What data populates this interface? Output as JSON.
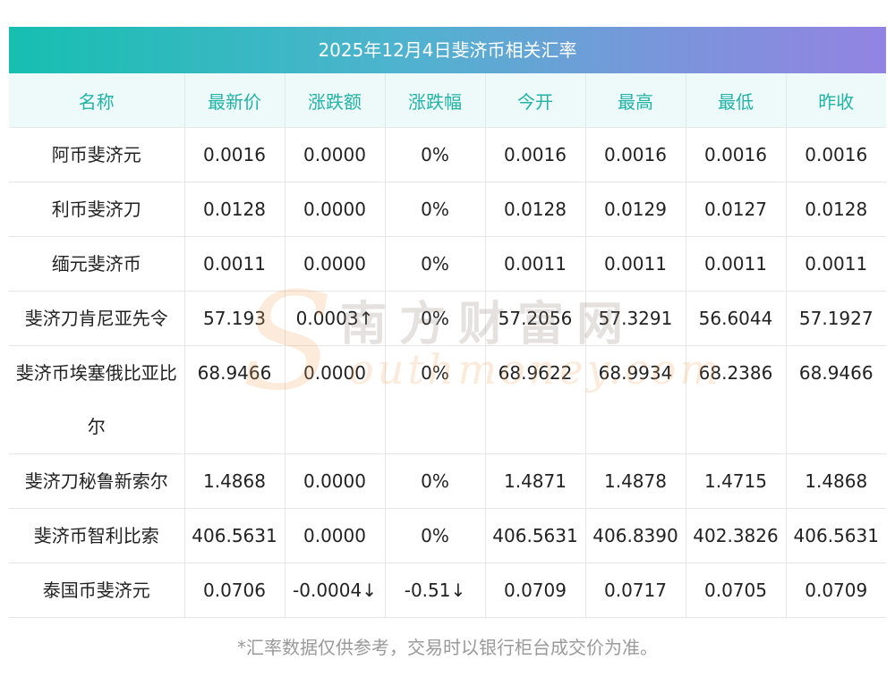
{
  "title": "2025年12月4日斐济币相关汇率",
  "columns": [
    "名称",
    "最新价",
    "涨跌额",
    "涨跌幅",
    "今开",
    "最高",
    "最低",
    "昨收"
  ],
  "rows": [
    {
      "name": "阿币斐济元",
      "latest": "0.0016",
      "change": "0.0000",
      "pct": "0%",
      "open": "0.0016",
      "high": "0.0016",
      "low": "0.0016",
      "prev": "0.0016",
      "trend": "flat"
    },
    {
      "name": "利币斐济刀",
      "latest": "0.0128",
      "change": "0.0000",
      "pct": "0%",
      "open": "0.0128",
      "high": "0.0129",
      "low": "0.0127",
      "prev": "0.0128",
      "trend": "flat"
    },
    {
      "name": "缅元斐济币",
      "latest": "0.0011",
      "change": "0.0000",
      "pct": "0%",
      "open": "0.0011",
      "high": "0.0011",
      "low": "0.0011",
      "prev": "0.0011",
      "trend": "flat"
    },
    {
      "name": "斐济刀肯尼亚先令",
      "latest": "57.193",
      "change": "0.0003↑",
      "pct": "0%",
      "open": "57.2056",
      "high": "57.3291",
      "low": "56.6044",
      "prev": "57.1927",
      "trend": "up_change_only"
    },
    {
      "name": "斐济币埃塞俄比亚比尔",
      "latest": "68.9466",
      "change": "0.0000",
      "pct": "0%",
      "open": "68.9622",
      "high": "68.9934",
      "low": "68.2386",
      "prev": "68.9466",
      "trend": "flat"
    },
    {
      "name": "斐济刀秘鲁新索尔",
      "latest": "1.4868",
      "change": "0.0000",
      "pct": "0%",
      "open": "1.4871",
      "high": "1.4878",
      "low": "1.4715",
      "prev": "1.4868",
      "trend": "flat"
    },
    {
      "name": "斐济币智利比索",
      "latest": "406.5631",
      "change": "0.0000",
      "pct": "0%",
      "open": "406.5631",
      "high": "406.8390",
      "low": "402.3826",
      "prev": "406.5631",
      "trend": "flat"
    },
    {
      "name": "泰国币斐济元",
      "latest": "0.0706",
      "change": "-0.0004↓",
      "pct": "-0.51↓",
      "open": "0.0709",
      "high": "0.0717",
      "low": "0.0705",
      "prev": "0.0709",
      "trend": "down"
    }
  ],
  "footnote": "*汇率数据仅供参考，交易时以银行柜台成交价为准。",
  "watermark": {
    "letter": "S",
    "cn": "南方财富网",
    "en": "outhmoney.com"
  },
  "colors": {
    "up": "#e8251f",
    "down": "#1e8f1e",
    "header_text": "#21b3a6",
    "title_gradient_start": "#16bfb0",
    "title_gradient_end": "#9383e2"
  }
}
